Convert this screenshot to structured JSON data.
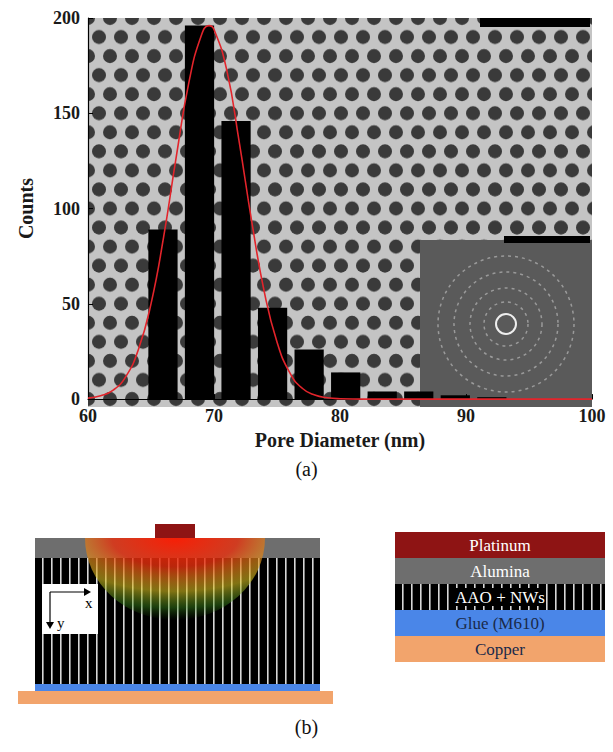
{
  "chart_data": {
    "type": "histogram",
    "xlabel": "Pore Diameter (nm)",
    "ylabel": "Counts",
    "bins": [
      64.5,
      67.4,
      70.3,
      73.2,
      76.1,
      79.0,
      81.9,
      84.8,
      87.7,
      90.6,
      93.5
    ],
    "values": [
      89,
      196,
      146,
      48,
      26,
      14,
      4,
      4,
      2,
      1
    ],
    "color": "#000000",
    "xlim": [
      60,
      100
    ],
    "xticks": [
      60,
      70,
      80,
      90,
      100
    ],
    "ylim": [
      0,
      200
    ],
    "yticks": [
      0,
      50,
      100,
      150,
      200
    ],
    "fit": {
      "type": "line",
      "color": "#e3242b",
      "x": [
        60,
        61,
        62,
        63,
        64,
        65,
        66,
        67,
        68,
        69,
        69.6,
        70,
        71,
        72,
        73,
        74,
        75,
        76,
        77,
        78,
        79,
        80,
        82,
        85,
        90,
        95,
        100
      ],
      "values": [
        0.5,
        1.7,
        4.7,
        11.8,
        26,
        50,
        85,
        127,
        166,
        191,
        196,
        194,
        173,
        135,
        93,
        56,
        30,
        14,
        5.7,
        2.1,
        0.7,
        0.2,
        0,
        0,
        0,
        0,
        0
      ]
    }
  },
  "panel_labels": {
    "a": "(a)",
    "b": "(b)"
  },
  "diagram": {
    "axes": {
      "x": "x",
      "y": "y"
    },
    "layers": [
      {
        "label": "Platinum",
        "color": "#8e1414"
      },
      {
        "label": "Alumina",
        "color": "#6e6e6e"
      },
      {
        "label": "AAO + NWs",
        "color": "#000000"
      },
      {
        "label": "Glue (M610)",
        "color": "#4a86e8"
      },
      {
        "label": "Copper",
        "color": "#f2a46c"
      }
    ]
  }
}
